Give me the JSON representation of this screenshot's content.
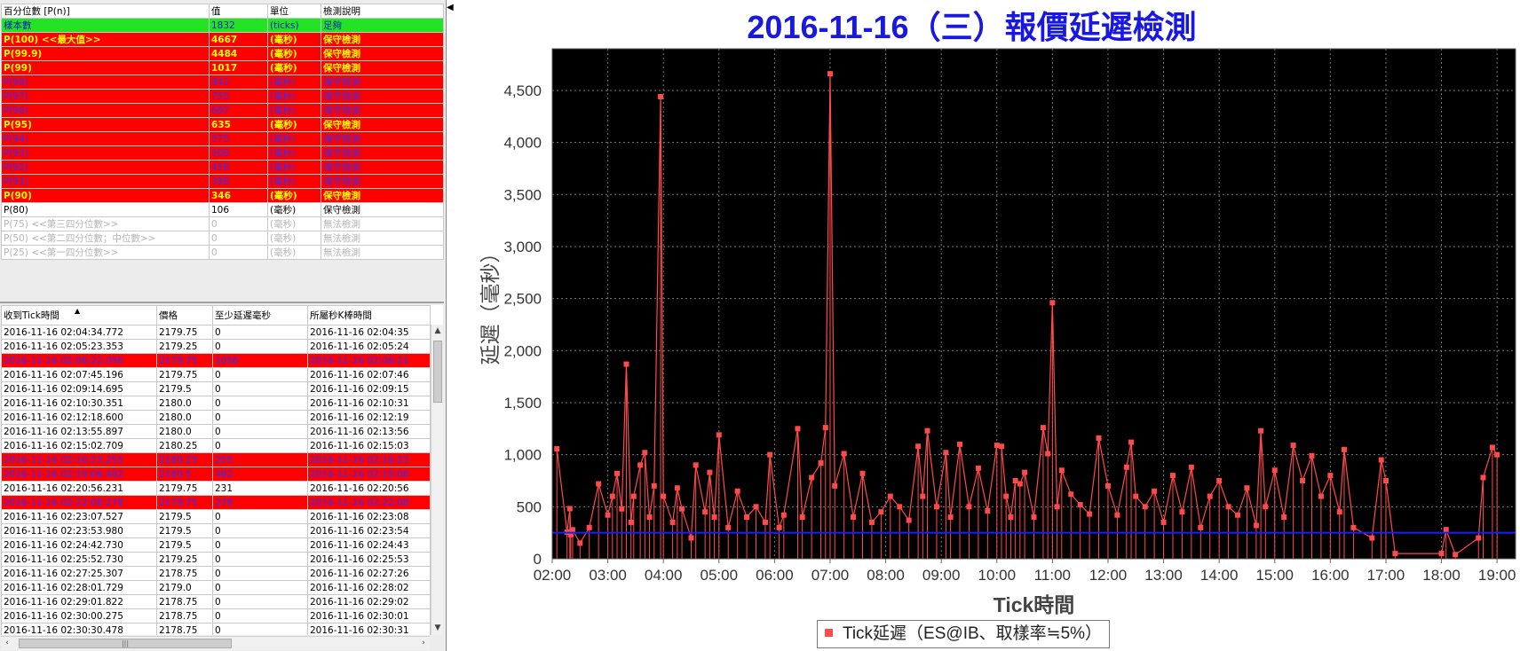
{
  "percentile_table": {
    "headers": [
      "百分位數 [P(n)]",
      "值",
      "單位",
      "檢測說明"
    ],
    "rows": [
      {
        "style": "green",
        "label": "樣本數",
        "value": "1832",
        "unit": "(ticks)",
        "note": "足夠"
      },
      {
        "style": "red-yellow",
        "label": "P(100) <<最大值>>",
        "value": "4667",
        "unit": "(毫秒)",
        "note": "保守檢測"
      },
      {
        "style": "red-yellow",
        "label": "P(99.9)",
        "value": "4484",
        "unit": "(毫秒)",
        "note": "保守檢測"
      },
      {
        "style": "red-yellow",
        "label": "P(99)",
        "value": "1017",
        "unit": "(毫秒)",
        "note": "保守檢測"
      },
      {
        "style": "red-blue",
        "label": "P(98)",
        "value": "842",
        "unit": "(毫秒)",
        "note": "保守檢測"
      },
      {
        "style": "red-blue",
        "label": "P(97)",
        "value": "755",
        "unit": "(毫秒)",
        "note": "保守檢測"
      },
      {
        "style": "red-blue",
        "label": "P(96)",
        "value": "687",
        "unit": "(毫秒)",
        "note": "保守檢測"
      },
      {
        "style": "red-yellow",
        "label": "P(95)",
        "value": "635",
        "unit": "(毫秒)",
        "note": "保守檢測"
      },
      {
        "style": "red-blue",
        "label": "P(94)",
        "value": "575",
        "unit": "(毫秒)",
        "note": "保守檢測"
      },
      {
        "style": "red-blue",
        "label": "P(93)",
        "value": "508",
        "unit": "(毫秒)",
        "note": "保守檢測"
      },
      {
        "style": "red-blue",
        "label": "P(92)",
        "value": "458",
        "unit": "(毫秒)",
        "note": "保守檢測"
      },
      {
        "style": "red-blue",
        "label": "P(91)",
        "value": "398",
        "unit": "(毫秒)",
        "note": "保守檢測"
      },
      {
        "style": "red-yellow",
        "label": "P(90)",
        "value": "346",
        "unit": "(毫秒)",
        "note": "保守檢測"
      },
      {
        "style": "plain",
        "label": "P(80)",
        "value": "106",
        "unit": "(毫秒)",
        "note": "保守檢測"
      },
      {
        "style": "gray",
        "label": "P(75) <<第三四分位數>>",
        "value": "0",
        "unit": "(毫秒)",
        "note": "無法檢測"
      },
      {
        "style": "gray",
        "label": "P(50) <<第二四分位數；中位數>>",
        "value": "0",
        "unit": "(毫秒)",
        "note": "無法檢測"
      },
      {
        "style": "gray",
        "label": "P(25) <<第一四分位數>>",
        "value": "0",
        "unit": "(毫秒)",
        "note": "無法檢測"
      }
    ]
  },
  "tick_table": {
    "headers": [
      "收到Tick時間",
      "價格",
      "至少延遲毫秒",
      "所屬秒K棒時間"
    ],
    "sort_indicator": "▲",
    "rows": [
      {
        "hl": false,
        "time": "2016-11-16 02:04:34.772",
        "price": "2179.75",
        "delay": "0",
        "bar": "2016-11-16 02:04:35"
      },
      {
        "hl": false,
        "time": "2016-11-16 02:05:23.353",
        "price": "2179.25",
        "delay": "0",
        "bar": "2016-11-16 02:05:24"
      },
      {
        "hl": true,
        "time": "2016-11-16 02:06:22.056",
        "price": "2179.75",
        "delay": "1056",
        "bar": "2016-11-16 02:06:21"
      },
      {
        "hl": false,
        "time": "2016-11-16 02:07:45.196",
        "price": "2179.75",
        "delay": "0",
        "bar": "2016-11-16 02:07:46"
      },
      {
        "hl": false,
        "time": "2016-11-16 02:09:14.695",
        "price": "2179.5",
        "delay": "0",
        "bar": "2016-11-16 02:09:15"
      },
      {
        "hl": false,
        "time": "2016-11-16 02:10:30.351",
        "price": "2180.0",
        "delay": "0",
        "bar": "2016-11-16 02:10:31"
      },
      {
        "hl": false,
        "time": "2016-11-16 02:12:18.600",
        "price": "2180.0",
        "delay": "0",
        "bar": "2016-11-16 02:12:19"
      },
      {
        "hl": false,
        "time": "2016-11-16 02:13:55.897",
        "price": "2180.0",
        "delay": "0",
        "bar": "2016-11-16 02:13:56"
      },
      {
        "hl": false,
        "time": "2016-11-16 02:15:02.709",
        "price": "2180.25",
        "delay": "0",
        "bar": "2016-11-16 02:15:03"
      },
      {
        "hl": true,
        "time": "2016-11-16 02:16:23.255",
        "price": "2180.25",
        "delay": "255",
        "bar": "2016-11-16 02:16:23"
      },
      {
        "hl": true,
        "time": "2016-11-16 02:19:06.482",
        "price": "2180.5",
        "delay": "482",
        "bar": "2016-11-16 02:19:06"
      },
      {
        "hl": false,
        "time": "2016-11-16 02:20:56.231",
        "price": "2179.75",
        "delay": "231",
        "bar": "2016-11-16 02:20:56"
      },
      {
        "hl": true,
        "time": "2016-11-16 02:22:08.278",
        "price": "2179.75",
        "delay": "278",
        "bar": "2016-11-16 02:22:08"
      },
      {
        "hl": false,
        "time": "2016-11-16 02:23:07.527",
        "price": "2179.5",
        "delay": "0",
        "bar": "2016-11-16 02:23:08"
      },
      {
        "hl": false,
        "time": "2016-11-16 02:23:53.980",
        "price": "2179.5",
        "delay": "0",
        "bar": "2016-11-16 02:23:54"
      },
      {
        "hl": false,
        "time": "2016-11-16 02:24:42.730",
        "price": "2179.5",
        "delay": "0",
        "bar": "2016-11-16 02:24:43"
      },
      {
        "hl": false,
        "time": "2016-11-16 02:25:52.730",
        "price": "2179.25",
        "delay": "0",
        "bar": "2016-11-16 02:25:53"
      },
      {
        "hl": false,
        "time": "2016-11-16 02:27:25.307",
        "price": "2178.75",
        "delay": "0",
        "bar": "2016-11-16 02:27:26"
      },
      {
        "hl": false,
        "time": "2016-11-16 02:28:01.729",
        "price": "2179.0",
        "delay": "0",
        "bar": "2016-11-16 02:28:02"
      },
      {
        "hl": false,
        "time": "2016-11-16 02:29:01.822",
        "price": "2178.75",
        "delay": "0",
        "bar": "2016-11-16 02:29:02"
      },
      {
        "hl": false,
        "time": "2016-11-16 02:30:00.275",
        "price": "2178.75",
        "delay": "0",
        "bar": "2016-11-16 02:30:01"
      },
      {
        "hl": false,
        "time": "2016-11-16 02:30:30.478",
        "price": "2178.75",
        "delay": "0",
        "bar": "2016-11-16 02:30:31"
      }
    ]
  },
  "scroll_glyphs": {
    "up": "▲",
    "down": "▼",
    "left": "‹",
    "right": "›",
    "grip": "|||"
  },
  "collapse_glyph": "◀",
  "chart_data": {
    "type": "line",
    "title": "2016-11-16（三）報價延遲檢測",
    "xlabel": "Tick時間",
    "ylabel": "延遲（毫秒）",
    "x_ticks": [
      "02:00",
      "03:00",
      "04:00",
      "05:00",
      "06:00",
      "07:00",
      "08:00",
      "09:00",
      "10:00",
      "11:00",
      "12:00",
      "13:00",
      "14:00",
      "15:00",
      "16:00",
      "17:00",
      "18:00",
      "19:00"
    ],
    "y_ticks": [
      "0",
      "500",
      "1,000",
      "1,500",
      "2,000",
      "2,500",
      "3,000",
      "3,500",
      "4,000",
      "4,500"
    ],
    "xlim": [
      "02:00",
      "19:00"
    ],
    "ylim": [
      0,
      4900
    ],
    "background": "#000000",
    "grid": true,
    "legend": "bottom-center",
    "series": [
      {
        "name": "Tick延遲（ES@IB、取樣率≒5%）",
        "color": "#ff4a4a",
        "marker": "square",
        "points": [
          [
            "02:05",
            1056
          ],
          [
            "02:16",
            255
          ],
          [
            "02:19",
            482
          ],
          [
            "02:20",
            231
          ],
          [
            "02:22",
            278
          ],
          [
            "02:30",
            150
          ],
          [
            "02:40",
            300
          ],
          [
            "02:50",
            720
          ],
          [
            "03:00",
            420
          ],
          [
            "03:05",
            600
          ],
          [
            "03:10",
            820
          ],
          [
            "03:15",
            480
          ],
          [
            "03:20",
            1870
          ],
          [
            "03:25",
            350
          ],
          [
            "03:28",
            600
          ],
          [
            "03:35",
            900
          ],
          [
            "03:40",
            1020
          ],
          [
            "03:45",
            400
          ],
          [
            "03:50",
            700
          ],
          [
            "03:57",
            4440
          ],
          [
            "04:00",
            600
          ],
          [
            "04:10",
            350
          ],
          [
            "04:15",
            680
          ],
          [
            "04:20",
            480
          ],
          [
            "04:30",
            200
          ],
          [
            "04:35",
            900
          ],
          [
            "04:45",
            450
          ],
          [
            "04:50",
            830
          ],
          [
            "04:55",
            400
          ],
          [
            "05:00",
            1190
          ],
          [
            "05:10",
            300
          ],
          [
            "05:20",
            650
          ],
          [
            "05:30",
            400
          ],
          [
            "05:40",
            500
          ],
          [
            "05:50",
            350
          ],
          [
            "05:55",
            1000
          ],
          [
            "06:05",
            300
          ],
          [
            "06:10",
            420
          ],
          [
            "06:25",
            1250
          ],
          [
            "06:30",
            400
          ],
          [
            "06:40",
            780
          ],
          [
            "06:50",
            920
          ],
          [
            "06:55",
            1260
          ],
          [
            "07:00",
            4660
          ],
          [
            "07:05",
            700
          ],
          [
            "07:15",
            1010
          ],
          [
            "07:25",
            400
          ],
          [
            "07:35",
            820
          ],
          [
            "07:45",
            350
          ],
          [
            "07:55",
            450
          ],
          [
            "08:05",
            600
          ],
          [
            "08:15",
            500
          ],
          [
            "08:25",
            370
          ],
          [
            "08:35",
            1080
          ],
          [
            "08:40",
            600
          ],
          [
            "08:45",
            1230
          ],
          [
            "08:55",
            500
          ],
          [
            "09:05",
            1020
          ],
          [
            "09:10",
            400
          ],
          [
            "09:20",
            1100
          ],
          [
            "09:30",
            500
          ],
          [
            "09:40",
            870
          ],
          [
            "09:50",
            460
          ],
          [
            "10:00",
            1090
          ],
          [
            "10:05",
            1080
          ],
          [
            "10:10",
            600
          ],
          [
            "10:15",
            400
          ],
          [
            "10:20",
            750
          ],
          [
            "10:25",
            720
          ],
          [
            "10:30",
            830
          ],
          [
            "10:40",
            400
          ],
          [
            "10:50",
            1260
          ],
          [
            "10:55",
            1010
          ],
          [
            "11:00",
            2460
          ],
          [
            "11:05",
            500
          ],
          [
            "11:10",
            850
          ],
          [
            "11:20",
            620
          ],
          [
            "11:30",
            520
          ],
          [
            "11:40",
            430
          ],
          [
            "11:50",
            1160
          ],
          [
            "12:00",
            700
          ],
          [
            "12:10",
            420
          ],
          [
            "12:20",
            880
          ],
          [
            "12:25",
            1120
          ],
          [
            "12:30",
            600
          ],
          [
            "12:40",
            500
          ],
          [
            "12:50",
            650
          ],
          [
            "13:00",
            350
          ],
          [
            "13:10",
            800
          ],
          [
            "13:20",
            450
          ],
          [
            "13:30",
            880
          ],
          [
            "13:40",
            300
          ],
          [
            "13:50",
            600
          ],
          [
            "14:00",
            750
          ],
          [
            "14:10",
            500
          ],
          [
            "14:20",
            420
          ],
          [
            "14:30",
            680
          ],
          [
            "14:40",
            320
          ],
          [
            "14:45",
            1230
          ],
          [
            "14:50",
            500
          ],
          [
            "15:00",
            850
          ],
          [
            "15:10",
            400
          ],
          [
            "15:20",
            1090
          ],
          [
            "15:30",
            750
          ],
          [
            "15:40",
            990
          ],
          [
            "15:50",
            600
          ],
          [
            "16:00",
            800
          ],
          [
            "16:10",
            450
          ],
          [
            "16:15",
            1050
          ],
          [
            "16:25",
            300
          ],
          [
            "16:45",
            200
          ],
          [
            "16:55",
            950
          ],
          [
            "17:00",
            750
          ],
          [
            "17:10",
            50
          ],
          [
            "18:00",
            50
          ],
          [
            "18:05",
            280
          ],
          [
            "18:15",
            40
          ],
          [
            "18:40",
            200
          ],
          [
            "18:45",
            780
          ],
          [
            "18:55",
            1070
          ],
          [
            "19:00",
            1000
          ]
        ]
      },
      {
        "name": "",
        "color": "#1c1cff",
        "type": "hline",
        "y": 250
      }
    ]
  }
}
